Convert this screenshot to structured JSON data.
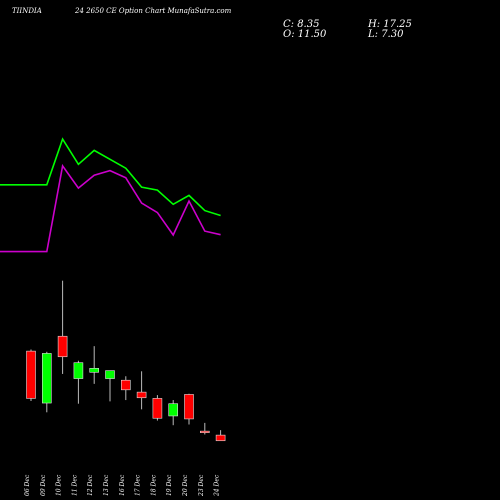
{
  "header": {
    "symbol": "TIINDIA",
    "title": "24 2650  CE Option Chart MunafaSutra.com",
    "close": "C: 8.35",
    "high": "H: 17.25",
    "open": "O: 11.50",
    "low": "L: 7.30"
  },
  "chart_data": {
    "type": "candlestick",
    "title": "24 2650  CE Option Chart MunafaSutra.com",
    "dates": [
      "06 Dec",
      "09 Dec",
      "10 Dec",
      "11 Dec",
      "12 Dec",
      "13 Dec",
      "16 Dec",
      "17 Dec",
      "18 Dec",
      "19 Dec",
      "20 Dec",
      "23 Dec",
      "24 Dec"
    ],
    "candles": [
      {
        "open": 46.9,
        "high": 47.4,
        "low": 31.8,
        "close": 32.6,
        "color": "red"
      },
      {
        "open": 31.2,
        "high": 46.7,
        "low": 28.4,
        "close": 46.2,
        "color": "green"
      },
      {
        "open": 51.4,
        "high": 68.2,
        "low": 40.0,
        "close": 45.2,
        "color": "red"
      },
      {
        "open": 38.6,
        "high": 44.0,
        "low": 31.0,
        "close": 43.4,
        "color": "green"
      },
      {
        "open": 40.5,
        "high": 48.4,
        "low": 37.0,
        "close": 41.7,
        "color": "green"
      },
      {
        "open": 38.6,
        "high": 40.5,
        "low": 31.7,
        "close": 41.0,
        "color": "green"
      },
      {
        "open": 38.1,
        "high": 39.3,
        "low": 32.1,
        "close": 35.2,
        "color": "red"
      },
      {
        "open": 34.5,
        "high": 40.8,
        "low": 29.3,
        "close": 32.8,
        "color": "red"
      },
      {
        "open": 32.6,
        "high": 33.6,
        "low": 25.9,
        "close": 26.6,
        "color": "red"
      },
      {
        "open": 27.3,
        "high": 32.1,
        "low": 24.5,
        "close": 31.0,
        "color": "green"
      },
      {
        "open": 33.8,
        "high": 34.0,
        "low": 24.7,
        "close": 26.4,
        "color": "red"
      },
      {
        "open": 22.7,
        "high": 25.2,
        "low": 21.7,
        "close": 22.7,
        "color": "red"
      },
      {
        "open": 21.5,
        "high": 23.0,
        "low": 19.8,
        "close": 19.8,
        "color": "red"
      }
    ],
    "series": [
      {
        "color": "#00ff00",
        "values": [
          97.2,
          97.2,
          111.0,
          103.4,
          107.6,
          104.9,
          102.2,
          96.5,
          95.6,
          91.3,
          94.0,
          89.4,
          87.9
        ]
      },
      {
        "color": "#cc00cc",
        "values": [
          77.0,
          77.0,
          102.9,
          96.2,
          100.1,
          101.5,
          99.3,
          91.7,
          88.8,
          82.0,
          92.3,
          83.2,
          82.1
        ]
      }
    ],
    "ylim": [
      17,
      118
    ],
    "grid": false,
    "colors": {
      "up": "#00ff00",
      "down": "#ff0000",
      "background": "#000000"
    }
  }
}
